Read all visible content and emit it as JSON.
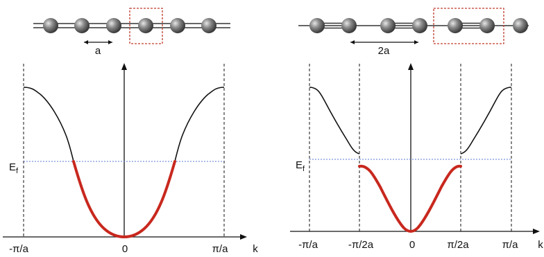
{
  "left_panel": {
    "chain_spacing_label": "a",
    "fermi_label": "E",
    "fermi_subscript": "f",
    "k_axis_label": "k",
    "tick_labels": [
      "-π/a",
      "0",
      "π/a"
    ]
  },
  "right_panel": {
    "chain_spacing_label": "2a",
    "fermi_label": "E",
    "fermi_subscript": "f",
    "k_axis_label": "k",
    "tick_labels": [
      "-π/a",
      "-π/2a",
      "0",
      "π/2a",
      "π/a"
    ]
  },
  "colors": {
    "band_unfilled": "#111111",
    "band_filled": "#c8281e",
    "fermi_line": "#5577cc",
    "unit_cell_box": "#c0392b",
    "atom": "#6a6a6a"
  }
}
